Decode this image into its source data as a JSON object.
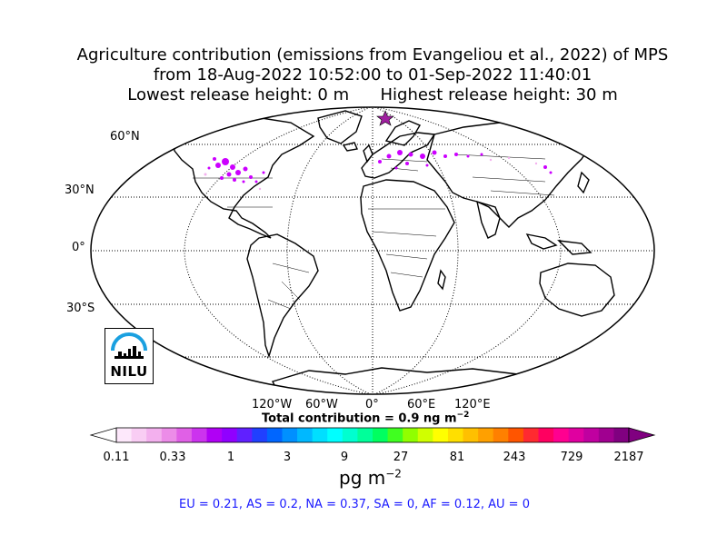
{
  "title": {
    "line1": "Agriculture contribution (emissions from Evangeliou et al., 2022) of MPS",
    "line2": "from 18-Aug-2022 10:52:00 to 01-Sep-2022 11:40:01",
    "line3_low": "Lowest release height: 0 m",
    "line3_high": "Highest release height: 30 m"
  },
  "lat_labels": [
    "60°N",
    "30°N",
    "0°",
    "30°S"
  ],
  "lon_labels": [
    "120°W",
    "60°W",
    "0°",
    "60°E",
    "120°E"
  ],
  "total_contribution": "Total contribution = 0.9 ng m",
  "total_exp": "−2",
  "colorbar": {
    "ticks": [
      "0.11",
      "0.33",
      "1",
      "3",
      "9",
      "27",
      "81",
      "243",
      "729",
      "2187"
    ],
    "unit": "pg m",
    "unit_exp": "−2",
    "colors": [
      "#fde8fb",
      "#f9cdf4",
      "#f3b0ee",
      "#ec8ce8",
      "#e060e6",
      "#cc33ee",
      "#b000f5",
      "#9000ff",
      "#6020ff",
      "#2040ff",
      "#0066ff",
      "#0090ff",
      "#00b8ff",
      "#00dfff",
      "#00ffff",
      "#00ffd0",
      "#00ff9a",
      "#00ff60",
      "#40ff20",
      "#90ff00",
      "#d0ff00",
      "#ffff00",
      "#ffdf00",
      "#ffc000",
      "#ffa000",
      "#ff8000",
      "#ff5500",
      "#ff2a30",
      "#ff0060",
      "#ff0090",
      "#e000a0",
      "#c000a0",
      "#a00090",
      "#800080"
    ]
  },
  "region_summary": "EU = 0.21,  AS = 0.2,  NA = 0.37,  SA = 0,  AF = 0.12,  AU = 0",
  "logo_text": "NILU",
  "source_marker": "star",
  "colors": {
    "regions_text": "#1a1aff",
    "star": "#a020a0",
    "deposition": "#cc00ff"
  }
}
